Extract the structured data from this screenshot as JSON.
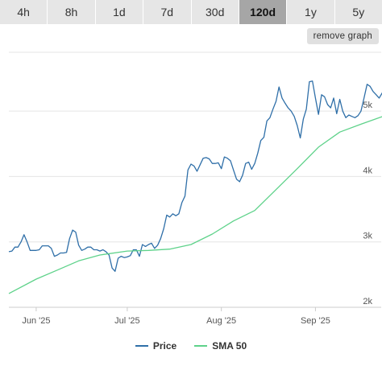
{
  "tabs": [
    {
      "label": "4h",
      "active": false
    },
    {
      "label": "8h",
      "active": false
    },
    {
      "label": "1d",
      "active": false
    },
    {
      "label": "7d",
      "active": false
    },
    {
      "label": "30d",
      "active": false
    },
    {
      "label": "120d",
      "active": true
    },
    {
      "label": "1y",
      "active": false
    },
    {
      "label": "5y",
      "active": false
    }
  ],
  "remove_graph_label": "remove graph",
  "colors": {
    "price": "#2f6fa8",
    "sma": "#5ed28a",
    "grid": "#e5e5e5",
    "axis_text": "#555555"
  },
  "chart_data": {
    "type": "line",
    "grid": true,
    "legend_position": "bottom-center",
    "x_range": [
      "2025-05-23",
      "2025-09-20"
    ],
    "ylim": [
      2000,
      5900
    ],
    "y_ticks": [
      {
        "value": 2000,
        "label": "2k"
      },
      {
        "value": 3000,
        "label": "3k"
      },
      {
        "value": 4000,
        "label": "4k"
      },
      {
        "value": 5000,
        "label": "5k"
      }
    ],
    "x_ticks": [
      {
        "date": "2025-06-01",
        "label": "Jun '25"
      },
      {
        "date": "2025-07-01",
        "label": "Jul '25"
      },
      {
        "date": "2025-08-01",
        "label": "Aug '25"
      },
      {
        "date": "2025-09-01",
        "label": "Sep '25"
      }
    ],
    "series": [
      {
        "name": "Price",
        "points": [
          [
            "2025-05-23",
            2850
          ],
          [
            "2025-05-24",
            2860
          ],
          [
            "2025-05-25",
            2920
          ],
          [
            "2025-05-26",
            2920
          ],
          [
            "2025-05-27",
            3000
          ],
          [
            "2025-05-28",
            3110
          ],
          [
            "2025-05-29",
            3000
          ],
          [
            "2025-05-30",
            2870
          ],
          [
            "2025-05-31",
            2870
          ],
          [
            "2025-06-01",
            2870
          ],
          [
            "2025-06-02",
            2880
          ],
          [
            "2025-06-03",
            2940
          ],
          [
            "2025-06-04",
            2940
          ],
          [
            "2025-06-05",
            2940
          ],
          [
            "2025-06-06",
            2900
          ],
          [
            "2025-06-07",
            2780
          ],
          [
            "2025-06-08",
            2800
          ],
          [
            "2025-06-09",
            2830
          ],
          [
            "2025-06-10",
            2830
          ],
          [
            "2025-06-11",
            2840
          ],
          [
            "2025-06-12",
            3050
          ],
          [
            "2025-06-13",
            3180
          ],
          [
            "2025-06-14",
            3150
          ],
          [
            "2025-06-15",
            2950
          ],
          [
            "2025-06-16",
            2870
          ],
          [
            "2025-06-17",
            2890
          ],
          [
            "2025-06-18",
            2920
          ],
          [
            "2025-06-19",
            2920
          ],
          [
            "2025-06-20",
            2880
          ],
          [
            "2025-06-21",
            2880
          ],
          [
            "2025-06-22",
            2860
          ],
          [
            "2025-06-23",
            2880
          ],
          [
            "2025-06-24",
            2850
          ],
          [
            "2025-06-25",
            2800
          ],
          [
            "2025-06-26",
            2600
          ],
          [
            "2025-06-27",
            2550
          ],
          [
            "2025-06-28",
            2750
          ],
          [
            "2025-06-29",
            2780
          ],
          [
            "2025-06-30",
            2760
          ],
          [
            "2025-07-01",
            2770
          ],
          [
            "2025-07-02",
            2790
          ],
          [
            "2025-07-03",
            2880
          ],
          [
            "2025-07-04",
            2880
          ],
          [
            "2025-07-05",
            2780
          ],
          [
            "2025-07-06",
            2960
          ],
          [
            "2025-07-07",
            2930
          ],
          [
            "2025-07-08",
            2960
          ],
          [
            "2025-07-09",
            2980
          ],
          [
            "2025-07-10",
            2900
          ],
          [
            "2025-07-11",
            2950
          ],
          [
            "2025-07-12",
            3050
          ],
          [
            "2025-07-13",
            3200
          ],
          [
            "2025-07-14",
            3410
          ],
          [
            "2025-07-15",
            3380
          ],
          [
            "2025-07-16",
            3430
          ],
          [
            "2025-07-17",
            3400
          ],
          [
            "2025-07-18",
            3430
          ],
          [
            "2025-07-19",
            3600
          ],
          [
            "2025-07-20",
            3700
          ],
          [
            "2025-07-21",
            4100
          ],
          [
            "2025-07-22",
            4190
          ],
          [
            "2025-07-23",
            4160
          ],
          [
            "2025-07-24",
            4080
          ],
          [
            "2025-07-25",
            4180
          ],
          [
            "2025-07-26",
            4280
          ],
          [
            "2025-07-27",
            4290
          ],
          [
            "2025-07-28",
            4270
          ],
          [
            "2025-07-29",
            4200
          ],
          [
            "2025-07-30",
            4200
          ],
          [
            "2025-07-31",
            4210
          ],
          [
            "2025-08-01",
            4120
          ],
          [
            "2025-08-02",
            4300
          ],
          [
            "2025-08-03",
            4280
          ],
          [
            "2025-08-04",
            4240
          ],
          [
            "2025-08-05",
            4100
          ],
          [
            "2025-08-06",
            3960
          ],
          [
            "2025-08-07",
            3920
          ],
          [
            "2025-08-08",
            4020
          ],
          [
            "2025-08-09",
            4200
          ],
          [
            "2025-08-10",
            4220
          ],
          [
            "2025-08-11",
            4110
          ],
          [
            "2025-08-12",
            4200
          ],
          [
            "2025-08-13",
            4360
          ],
          [
            "2025-08-14",
            4550
          ],
          [
            "2025-08-15",
            4600
          ],
          [
            "2025-08-16",
            4850
          ],
          [
            "2025-08-17",
            4900
          ],
          [
            "2025-08-18",
            5030
          ],
          [
            "2025-08-19",
            5150
          ],
          [
            "2025-08-20",
            5370
          ],
          [
            "2025-08-21",
            5200
          ],
          [
            "2025-08-22",
            5120
          ],
          [
            "2025-08-23",
            5050
          ],
          [
            "2025-08-24",
            5000
          ],
          [
            "2025-08-25",
            4920
          ],
          [
            "2025-08-26",
            4780
          ],
          [
            "2025-08-27",
            4590
          ],
          [
            "2025-08-28",
            4880
          ],
          [
            "2025-08-29",
            5030
          ],
          [
            "2025-08-30",
            5450
          ],
          [
            "2025-08-31",
            5460
          ],
          [
            "2025-09-01",
            5200
          ],
          [
            "2025-09-02",
            4950
          ],
          [
            "2025-09-03",
            5250
          ],
          [
            "2025-09-04",
            5220
          ],
          [
            "2025-09-05",
            5100
          ],
          [
            "2025-09-06",
            5050
          ],
          [
            "2025-09-07",
            5200
          ],
          [
            "2025-09-08",
            4960
          ],
          [
            "2025-09-09",
            5180
          ],
          [
            "2025-09-10",
            5000
          ],
          [
            "2025-09-11",
            4900
          ],
          [
            "2025-09-12",
            4940
          ],
          [
            "2025-09-13",
            4920
          ],
          [
            "2025-09-14",
            4900
          ],
          [
            "2025-09-15",
            4930
          ],
          [
            "2025-09-16",
            5000
          ],
          [
            "2025-09-17",
            5200
          ],
          [
            "2025-09-18",
            5410
          ],
          [
            "2025-09-19",
            5380
          ],
          [
            "2025-09-20",
            5300
          ],
          [
            "2025-09-21",
            5250
          ],
          [
            "2025-09-22",
            5200
          ],
          [
            "2025-09-23",
            5280
          ],
          [
            "2025-09-24",
            5200
          ],
          [
            "2025-09-25",
            4950
          ]
        ]
      },
      {
        "name": "SMA 50",
        "points": [
          [
            "2025-05-23",
            2210
          ],
          [
            "2025-06-01",
            2430
          ],
          [
            "2025-06-08",
            2570
          ],
          [
            "2025-06-15",
            2710
          ],
          [
            "2025-06-22",
            2800
          ],
          [
            "2025-07-01",
            2860
          ],
          [
            "2025-07-08",
            2870
          ],
          [
            "2025-07-15",
            2890
          ],
          [
            "2025-07-22",
            2960
          ],
          [
            "2025-07-29",
            3120
          ],
          [
            "2025-08-05",
            3320
          ],
          [
            "2025-08-12",
            3480
          ],
          [
            "2025-08-19",
            3800
          ],
          [
            "2025-08-26",
            4120
          ],
          [
            "2025-09-02",
            4450
          ],
          [
            "2025-09-09",
            4680
          ],
          [
            "2025-09-16",
            4800
          ],
          [
            "2025-09-25",
            4950
          ]
        ]
      }
    ]
  }
}
